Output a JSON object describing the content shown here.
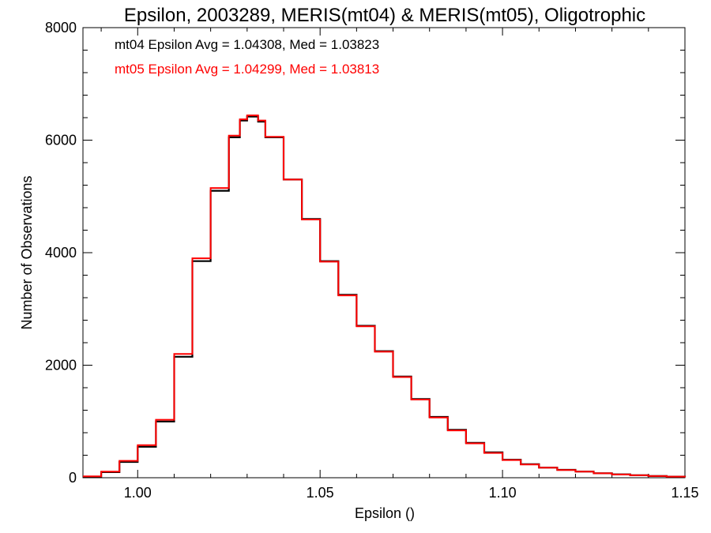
{
  "chart_data": {
    "type": "line",
    "title": "Epsilon, 2003289, MERIS(mt04) & MERIS(mt05), Oligotrophic",
    "xlabel": "Epsilon ()",
    "ylabel": "Number of Observations",
    "xlim": [
      0.985,
      1.15
    ],
    "ylim": [
      0,
      8000
    ],
    "x_ticks": [
      1.0,
      1.05,
      1.1,
      1.15
    ],
    "x_tick_labels": [
      "1.00",
      "1.05",
      "1.10",
      "1.15"
    ],
    "y_ticks": [
      0,
      2000,
      4000,
      6000,
      8000
    ],
    "y_tick_labels": [
      "0",
      "2000",
      "4000",
      "6000",
      "8000"
    ],
    "grid": false,
    "annotations": [
      {
        "text": "mt04 Epsilon Avg = 1.04308, Med = 1.03823",
        "color": "#000000"
      },
      {
        "text": "mt05 Epsilon Avg = 1.04299, Med = 1.03813",
        "color": "#ff0000"
      }
    ],
    "series": [
      {
        "color": "#000000",
        "step": true,
        "x": [
          0.985,
          0.99,
          0.995,
          1.0,
          1.005,
          1.01,
          1.015,
          1.02,
          1.025,
          1.028,
          1.03,
          1.033,
          1.035,
          1.04,
          1.045,
          1.05,
          1.055,
          1.06,
          1.065,
          1.07,
          1.075,
          1.08,
          1.085,
          1.09,
          1.095,
          1.1,
          1.105,
          1.11,
          1.115,
          1.12,
          1.125,
          1.13,
          1.135,
          1.14,
          1.145,
          1.15
        ],
        "y": [
          20,
          100,
          280,
          550,
          1000,
          2150,
          3850,
          5100,
          6050,
          6350,
          6420,
          6330,
          6050,
          5300,
          4600,
          3850,
          3250,
          2700,
          2250,
          1800,
          1400,
          1080,
          850,
          620,
          450,
          320,
          240,
          180,
          140,
          110,
          80,
          60,
          45,
          30,
          20,
          10
        ]
      },
      {
        "color": "#ff0000",
        "step": true,
        "x": [
          0.985,
          0.99,
          0.995,
          1.0,
          1.005,
          1.01,
          1.015,
          1.02,
          1.025,
          1.028,
          1.03,
          1.033,
          1.035,
          1.04,
          1.045,
          1.05,
          1.055,
          1.06,
          1.065,
          1.07,
          1.075,
          1.08,
          1.085,
          1.09,
          1.095,
          1.1,
          1.105,
          1.11,
          1.115,
          1.12,
          1.125,
          1.13,
          1.135,
          1.14,
          1.145,
          1.15
        ],
        "y": [
          25,
          110,
          300,
          580,
          1030,
          2200,
          3900,
          5150,
          6080,
          6370,
          6440,
          6350,
          6060,
          5300,
          4590,
          3840,
          3240,
          2690,
          2240,
          1790,
          1390,
          1070,
          840,
          610,
          440,
          315,
          235,
          178,
          138,
          108,
          78,
          58,
          43,
          29,
          19,
          9
        ]
      }
    ]
  }
}
